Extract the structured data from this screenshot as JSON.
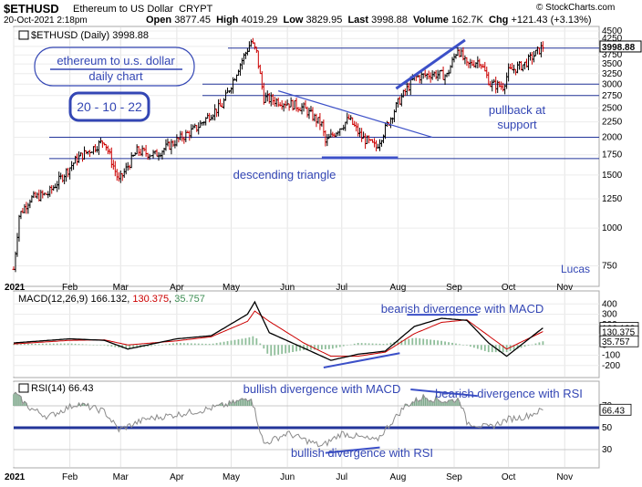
{
  "header": {
    "symbol": "$ETHUSD",
    "name": "Ethereum to US Dollar",
    "exchange": "CRYPT",
    "date_time": "20-Oct-2021 2:18pm",
    "open_label": "Open",
    "open": "3877.45",
    "high_label": "High",
    "high": "4019.29",
    "low_label": "Low",
    "low": "3829.95",
    "last_label": "Last",
    "last": "3998.88",
    "volume_label": "Volume",
    "volume": "162.7K",
    "chg_label": "Chg",
    "chg": "+121.43 (+3.13%)",
    "watermark": "© StockCharts.com"
  },
  "colors": {
    "frame": "#a8a8a8",
    "annotation": "#3346b4",
    "trendline": "#3c50c8",
    "up_bar": "#000000",
    "down_bar": "#cc0000",
    "macd_line": "#000000",
    "signal_line": "#cc0000",
    "hist_fill": "#8fbe9a",
    "rsi_line": "#8a8a8a",
    "rsi_fill": "#7fa88c"
  },
  "chart_data": [
    {
      "type": "ohlc",
      "legend": "$ETHUSD (Daily) 3998.88",
      "x_range": [
        "2021-01-01",
        "2021-11-20"
      ],
      "y_scale": "log",
      "y_range": [
        650,
        4500
      ],
      "y_ticks": [
        4500,
        4250,
        4000,
        3750,
        3500,
        3250,
        3000,
        2750,
        2500,
        2250,
        2000,
        1750,
        1500,
        1250,
        1000,
        750
      ],
      "last_label": "3998.88",
      "x_tick_labels": [
        "2021",
        "Feb",
        "Mar",
        "Apr",
        "May",
        "Jun",
        "Jul",
        "Aug",
        "Sep",
        "Oct",
        "Nov"
      ],
      "series": [
        {
          "x": [
            "2021-01-01",
            "2021-01-04",
            "2021-01-10",
            "2021-01-20",
            "2021-02-05",
            "2021-02-20",
            "2021-02-28",
            "2021-03-10",
            "2021-03-20",
            "2021-04-01",
            "2021-04-12",
            "2021-04-20",
            "2021-04-26",
            "2021-05-05",
            "2021-05-12",
            "2021-05-15",
            "2021-05-19",
            "2021-05-25",
            "2021-06-01",
            "2021-06-10",
            "2021-06-20",
            "2021-06-22",
            "2021-06-28",
            "2021-07-05",
            "2021-07-12",
            "2021-07-20",
            "2021-08-01",
            "2021-08-10",
            "2021-08-20",
            "2021-08-28",
            "2021-09-03",
            "2021-09-08",
            "2021-09-15",
            "2021-09-21",
            "2021-09-28",
            "2021-10-01",
            "2021-10-10",
            "2021-10-20"
          ],
          "close": [
            730,
            1100,
            1250,
            1300,
            1700,
            1950,
            1430,
            1800,
            1750,
            1950,
            2150,
            2400,
            2550,
            3400,
            4150,
            3800,
            2700,
            2650,
            2600,
            2500,
            2200,
            1920,
            2100,
            2300,
            2000,
            1850,
            2600,
            3150,
            3250,
            3200,
            3950,
            3450,
            3600,
            3000,
            2950,
            3300,
            3500,
            3998.88
          ]
        }
      ],
      "horizontal_levels": [
        3950,
        3000,
        2750,
        2000,
        1700
      ],
      "annotations": [
        "ethereum to u.s. dollar",
        "daily chart",
        "20 - 10 - 22",
        "descending triangle",
        "pullback at",
        "support",
        "Lucas"
      ]
    },
    {
      "type": "line",
      "legend_prefix": "MACD(12,26,9)",
      "legend_values": [
        "166.132",
        "130.375",
        "35.757"
      ],
      "y_ticks": [
        400,
        300,
        200,
        100,
        0,
        -100,
        -200
      ],
      "y_range": [
        -300,
        500
      ],
      "value_labels": [
        "166.132",
        "130.375",
        "35.757"
      ],
      "series": [
        {
          "name": "MACD",
          "x": [
            "2021-01-01",
            "2021-02-01",
            "2021-02-20",
            "2021-03-05",
            "2021-04-01",
            "2021-04-20",
            "2021-05-10",
            "2021-05-14",
            "2021-05-22",
            "2021-06-10",
            "2021-06-25",
            "2021-07-10",
            "2021-07-25",
            "2021-08-10",
            "2021-08-25",
            "2021-09-08",
            "2021-09-20",
            "2021-09-30",
            "2021-10-20"
          ],
          "values": [
            20,
            60,
            45,
            -40,
            60,
            90,
            300,
            420,
            120,
            -30,
            -150,
            -90,
            -60,
            180,
            260,
            240,
            20,
            -110,
            166.132
          ]
        },
        {
          "name": "Signal",
          "x": [
            "2021-01-01",
            "2021-02-01",
            "2021-02-20",
            "2021-03-05",
            "2021-04-01",
            "2021-04-20",
            "2021-05-10",
            "2021-05-14",
            "2021-05-22",
            "2021-06-10",
            "2021-06-25",
            "2021-07-10",
            "2021-07-25",
            "2021-08-10",
            "2021-08-25",
            "2021-09-08",
            "2021-09-20",
            "2021-09-30",
            "2021-10-20"
          ],
          "values": [
            10,
            45,
            50,
            0,
            40,
            80,
            230,
            330,
            230,
            20,
            -110,
            -110,
            -70,
            110,
            220,
            245,
            90,
            -40,
            130.375
          ]
        },
        {
          "name": "Histogram",
          "x": [
            "2021-01-01",
            "2021-02-01",
            "2021-02-20",
            "2021-03-05",
            "2021-04-01",
            "2021-04-20",
            "2021-05-10",
            "2021-05-14",
            "2021-05-22",
            "2021-06-10",
            "2021-06-25",
            "2021-07-10",
            "2021-07-25",
            "2021-08-10",
            "2021-08-25",
            "2021-09-08",
            "2021-09-20",
            "2021-09-30",
            "2021-10-20"
          ],
          "values": [
            10,
            15,
            -5,
            -40,
            20,
            10,
            70,
            90,
            -110,
            -50,
            -40,
            20,
            10,
            70,
            40,
            -5,
            -70,
            -70,
            35.757
          ]
        }
      ],
      "annotations": [
        "bearish divergence with MACD",
        "bullish divergence with MACD"
      ]
    },
    {
      "type": "area",
      "legend": "RSI(14) 66.43",
      "y_ticks": [
        70,
        50,
        30
      ],
      "y_range": [
        15,
        90
      ],
      "value_label": "66.43",
      "series": [
        {
          "name": "RSI",
          "x": [
            "2021-01-01",
            "2021-01-10",
            "2021-01-20",
            "2021-02-05",
            "2021-02-20",
            "2021-02-28",
            "2021-03-15",
            "2021-04-01",
            "2021-04-15",
            "2021-05-01",
            "2021-05-12",
            "2021-05-19",
            "2021-06-01",
            "2021-06-20",
            "2021-07-01",
            "2021-07-20",
            "2021-08-05",
            "2021-08-15",
            "2021-08-28",
            "2021-09-04",
            "2021-09-08",
            "2021-09-20",
            "2021-10-01",
            "2021-10-10",
            "2021-10-20"
          ],
          "values": [
            82,
            68,
            60,
            72,
            65,
            48,
            58,
            62,
            66,
            72,
            78,
            35,
            45,
            33,
            45,
            38,
            70,
            78,
            74,
            76,
            55,
            50,
            58,
            60,
            66.43
          ]
        }
      ],
      "annotations": [
        "bearish divergence with RSI",
        "bullish divergence with RSI"
      ]
    }
  ]
}
